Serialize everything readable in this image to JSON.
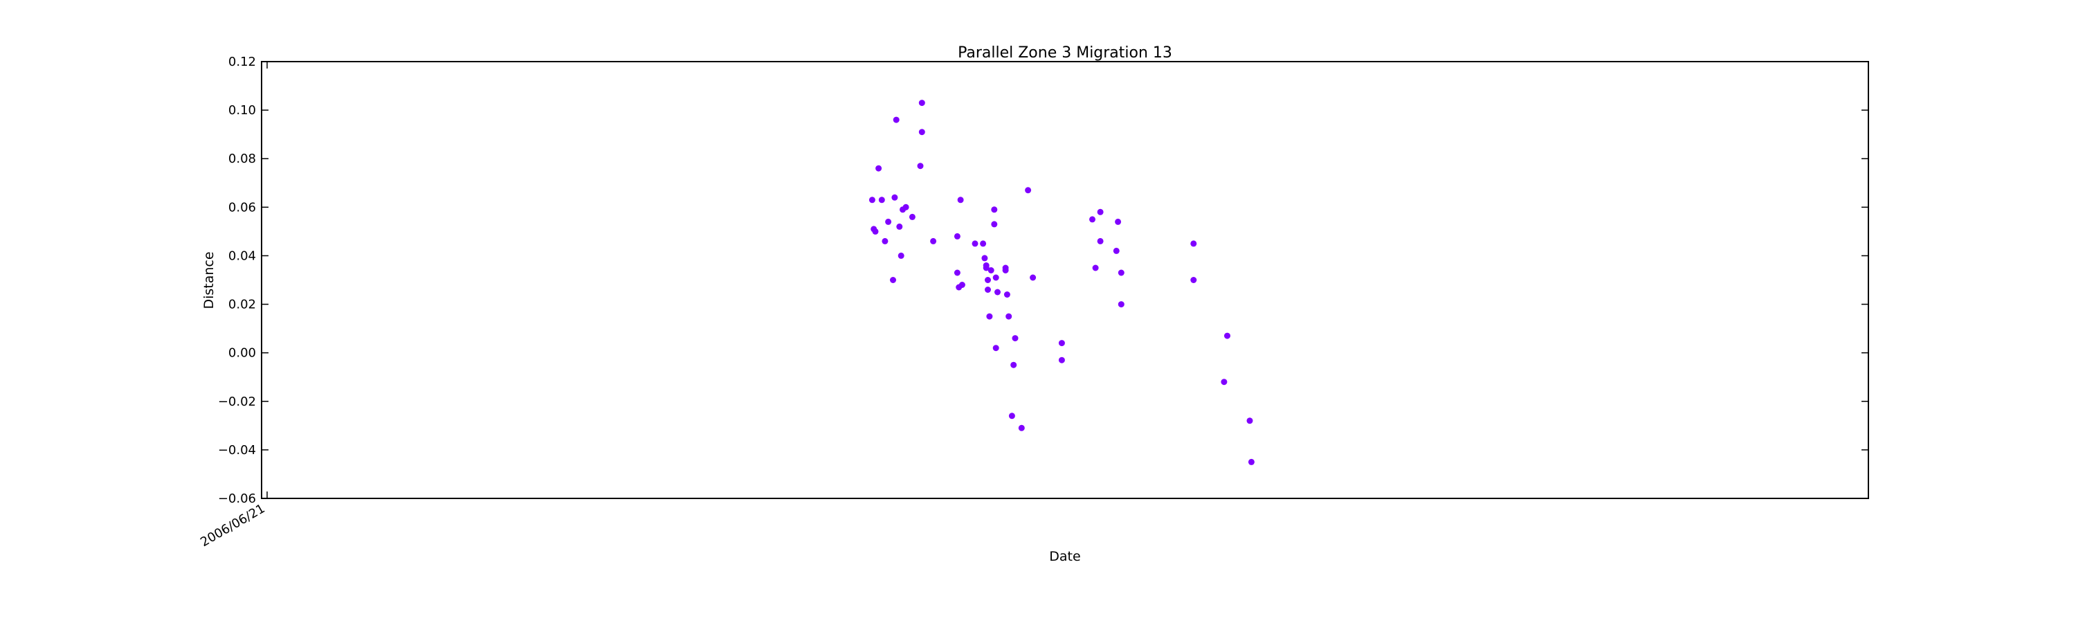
{
  "chart_data": {
    "type": "scatter",
    "title": "Parallel Zone 3 Migration 13",
    "xlabel": "Date",
    "ylabel": "Distance",
    "ylim": [
      -0.06,
      0.12
    ],
    "yticks": [
      "−0.06",
      "−0.04",
      "−0.02",
      "0.00",
      "0.02",
      "0.04",
      "0.06",
      "0.08",
      "0.10",
      "0.12"
    ],
    "xticks": [
      "2006/06/21"
    ],
    "grid": false,
    "legend": "none",
    "color": "#7f00ff",
    "x_index_range": [
      0,
      1000
    ],
    "series": [
      {
        "points": [
          [
            380,
            0.063
          ],
          [
            381,
            0.051
          ],
          [
            382,
            0.05
          ],
          [
            384,
            0.076
          ],
          [
            386,
            0.063
          ],
          [
            388,
            0.046
          ],
          [
            390,
            0.054
          ],
          [
            393,
            0.03
          ],
          [
            394,
            0.064
          ],
          [
            395,
            0.096
          ],
          [
            397,
            0.052
          ],
          [
            398,
            0.04
          ],
          [
            399,
            0.059
          ],
          [
            401,
            0.06
          ],
          [
            405,
            0.056
          ],
          [
            410,
            0.077
          ],
          [
            411,
            0.091
          ],
          [
            411,
            0.103
          ],
          [
            418,
            0.046
          ],
          [
            433,
            0.048
          ],
          [
            433,
            0.033
          ],
          [
            434,
            0.027
          ],
          [
            435,
            0.063
          ],
          [
            436,
            0.028
          ],
          [
            444,
            0.045
          ],
          [
            449,
            0.045
          ],
          [
            450,
            0.039
          ],
          [
            451,
            0.036
          ],
          [
            451,
            0.035
          ],
          [
            452,
            0.026
          ],
          [
            452,
            0.03
          ],
          [
            453,
            0.015
          ],
          [
            454,
            0.034
          ],
          [
            456,
            0.059
          ],
          [
            456,
            0.053
          ],
          [
            457,
            0.031
          ],
          [
            457,
            0.002
          ],
          [
            458,
            0.025
          ],
          [
            463,
            0.035
          ],
          [
            463,
            0.034
          ],
          [
            464,
            0.024
          ],
          [
            465,
            0.015
          ],
          [
            468,
            -0.005
          ],
          [
            467,
            -0.026
          ],
          [
            469,
            0.006
          ],
          [
            473,
            -0.031
          ],
          [
            477,
            0.067
          ],
          [
            480,
            0.031
          ],
          [
            498,
            0.004
          ],
          [
            498,
            -0.003
          ],
          [
            517,
            0.055
          ],
          [
            519,
            0.035
          ],
          [
            522,
            0.046
          ],
          [
            522,
            0.058
          ],
          [
            532,
            0.042
          ],
          [
            533,
            0.054
          ],
          [
            535,
            0.033
          ],
          [
            535,
            0.02
          ],
          [
            580,
            0.045
          ],
          [
            580,
            0.03
          ],
          [
            599,
            -0.012
          ],
          [
            601,
            0.007
          ],
          [
            615,
            -0.028
          ],
          [
            616,
            -0.045
          ]
        ]
      }
    ]
  }
}
